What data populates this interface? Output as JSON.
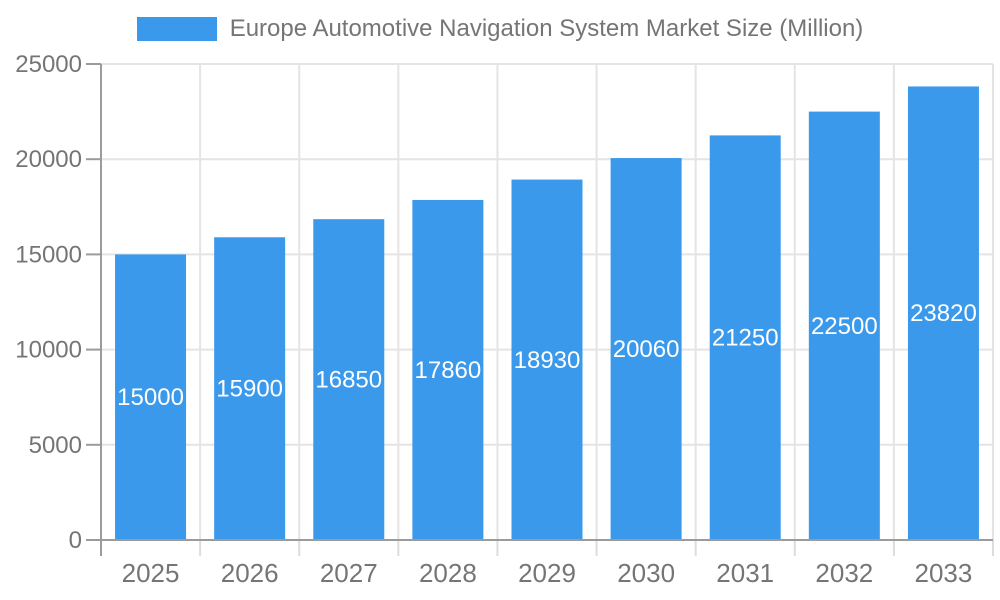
{
  "chart_data": {
    "type": "bar",
    "title": "Europe Automotive Navigation System Market Size (Million)",
    "legend_entries": [
      "Europe Automotive Navigation System Market Size (Million)"
    ],
    "legend_position": "top-center",
    "categories": [
      "2025",
      "2026",
      "2027",
      "2028",
      "2029",
      "2030",
      "2031",
      "2032",
      "2033"
    ],
    "values": [
      15000,
      15900,
      16850,
      17860,
      18930,
      20060,
      21250,
      22500,
      23820
    ],
    "xlabel": "",
    "ylabel": "",
    "ylim": [
      0,
      25000
    ],
    "ytick_step": 5000,
    "y_tick_labels": [
      "0",
      "5000",
      "10000",
      "15000",
      "20000",
      "25000"
    ],
    "grid": true,
    "bar_labels_visible": true,
    "bar_label_position": "inside-middle",
    "colors": {
      "bar": "#3B99EC",
      "bar_label_text": "#FFFFFF",
      "axis_text": "#757575",
      "grid_line": "#E4E4E4",
      "axis_line": "#9B9B9B",
      "x_tick_line": "#DDDDDD"
    }
  }
}
